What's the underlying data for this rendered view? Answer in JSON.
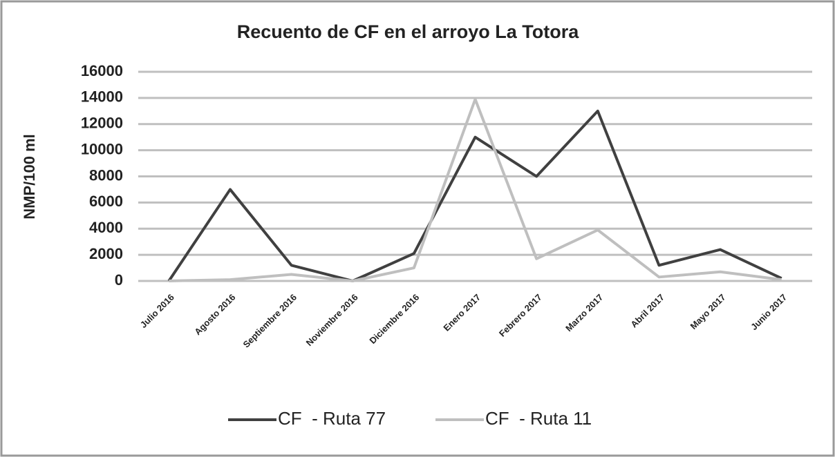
{
  "chart_data": {
    "type": "line",
    "title": "Recuento de CF en el arroyo La Totora",
    "y_label": "NMP/100 ml",
    "categories": [
      "Julio 2016",
      "Agosto 2016",
      "Septiembre 2016",
      "Noviembre 2016",
      "Diciembre 2016",
      "Enero 2017",
      "Febrero 2017",
      "Marzo 2017",
      "Abril 2017",
      "Mayo 2017",
      "Junio 2017"
    ],
    "series": [
      {
        "name": "CF  - Ruta 77",
        "color": "#404040",
        "values": [
          0,
          7000,
          1200,
          0,
          2100,
          11000,
          8000,
          13000,
          1200,
          2400,
          200
        ]
      },
      {
        "name": "CF  - Ruta 11",
        "color": "#bfbfbf",
        "values": [
          0,
          100,
          500,
          0,
          1000,
          13900,
          1700,
          3900,
          300,
          700,
          100
        ]
      }
    ],
    "ylim": [
      0,
      16000
    ],
    "yticks": [
      0,
      2000,
      4000,
      6000,
      8000,
      10000,
      12000,
      14000,
      16000
    ],
    "grid": true,
    "legend": "bottom"
  }
}
